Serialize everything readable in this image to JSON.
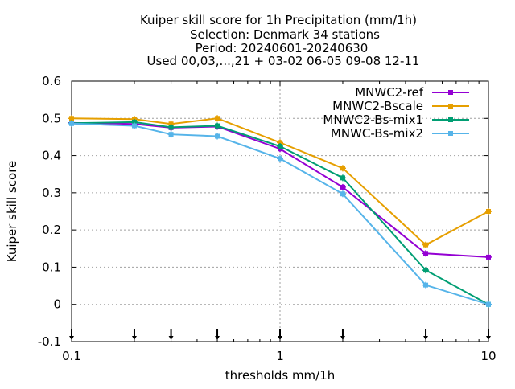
{
  "chart_data": {
    "type": "line",
    "title_lines": [
      "Kuiper skill score  for 1h Precipitation (mm/1h)",
      "Selection: Denmark     34 stations",
      "Period: 20240601-20240630",
      "Used 00,03,...,21 + 03-02 06-05 09-08 12-11"
    ],
    "xlabel": "thresholds mm/1h",
    "ylabel": "Kuiper skill score",
    "x_scale": "log",
    "xlim": [
      0.1,
      10
    ],
    "ylim": [
      -0.1,
      0.6
    ],
    "x_ticks": [
      0.1,
      1,
      10
    ],
    "x_tick_labels": [
      "0.1",
      "1",
      "10"
    ],
    "y_ticks": [
      -0.1,
      0,
      0.1,
      0.2,
      0.3,
      0.4,
      0.5,
      0.6
    ],
    "y_tick_labels": [
      "-0.1",
      "0",
      "0.1",
      "0.2",
      "0.3",
      "0.4",
      "0.5",
      "0.6"
    ],
    "grid": true,
    "legend_position": "top-right",
    "threshold_markers_x": [
      0.1,
      0.2,
      0.3,
      0.5,
      1,
      2,
      5,
      10
    ],
    "x": [
      0.1,
      0.2,
      0.3,
      0.5,
      1,
      2,
      5,
      10
    ],
    "series": [
      {
        "name": "MNWC2-ref",
        "color": "#9400d3",
        "values": [
          0.488,
          0.485,
          0.475,
          0.478,
          0.418,
          0.315,
          0.137,
          0.127
        ]
      },
      {
        "name": "MNWC2-Bscale",
        "color": "#e69f00",
        "values": [
          0.5,
          0.498,
          0.485,
          0.5,
          0.435,
          0.366,
          0.16,
          0.25
        ]
      },
      {
        "name": "MNWC2-Bs-mix1",
        "color": "#009e73",
        "values": [
          0.487,
          0.49,
          0.476,
          0.48,
          0.425,
          0.34,
          0.092,
          0.0
        ]
      },
      {
        "name": "MNWC-Bs-mix2",
        "color": "#56b4e9",
        "values": [
          0.486,
          0.48,
          0.457,
          0.452,
          0.392,
          0.297,
          0.052,
          0.0
        ]
      }
    ]
  }
}
